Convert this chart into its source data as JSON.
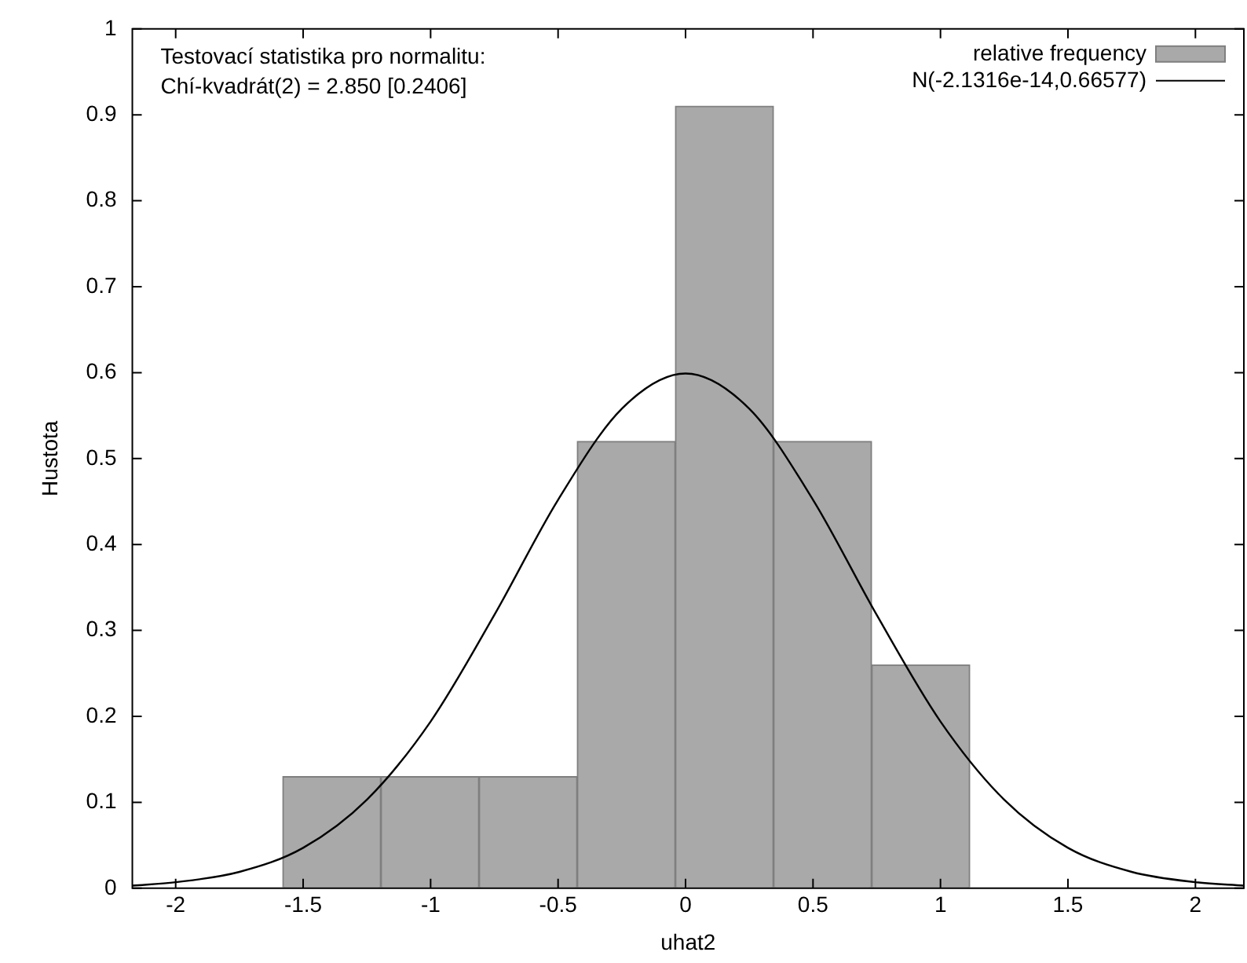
{
  "chart_data": {
    "type": "histogram",
    "xlabel": "uhat2",
    "ylabel": "Hustota",
    "annotations": [
      "Testovací statistika pro normalitu:",
      "Chí-kvadrát(2) = 2.850 [0.2406]"
    ],
    "xlim": [
      -2.17,
      2.19
    ],
    "xticks": [
      -2,
      -1.5,
      -1,
      -0.5,
      0,
      0.5,
      1,
      1.5,
      2
    ],
    "ylim": [
      0,
      1
    ],
    "yticks": [
      0,
      0.1,
      0.2,
      0.3,
      0.4,
      0.5,
      0.6,
      0.7,
      0.8,
      0.9,
      1
    ],
    "grid": false,
    "legend": "top right",
    "series": [
      {
        "name": "relative frequency",
        "color": "#a9a9a9",
        "bins": [
          -1.58,
          -1.195,
          -0.81,
          -0.425,
          -0.04,
          0.345,
          0.73,
          1.115
        ],
        "values": [
          0.13,
          0.13,
          0.13,
          0.52,
          0.91,
          0.52,
          0.26
        ]
      },
      {
        "name": "N(-2.1316e-14,0.66577)",
        "type": "line",
        "color": "#000000",
        "x": [
          -2.17,
          -2,
          -1.75,
          -1.5,
          -1.25,
          -1,
          -0.75,
          -0.5,
          -0.25,
          0,
          0.25,
          0.5,
          0.75,
          1,
          1.25,
          1.5,
          1.75,
          2,
          2.19
        ],
        "values": [
          0.003,
          0.007,
          0.019,
          0.047,
          0.103,
          0.194,
          0.318,
          0.452,
          0.558,
          0.599,
          0.558,
          0.452,
          0.318,
          0.194,
          0.103,
          0.047,
          0.019,
          0.007,
          0.003
        ]
      }
    ]
  }
}
